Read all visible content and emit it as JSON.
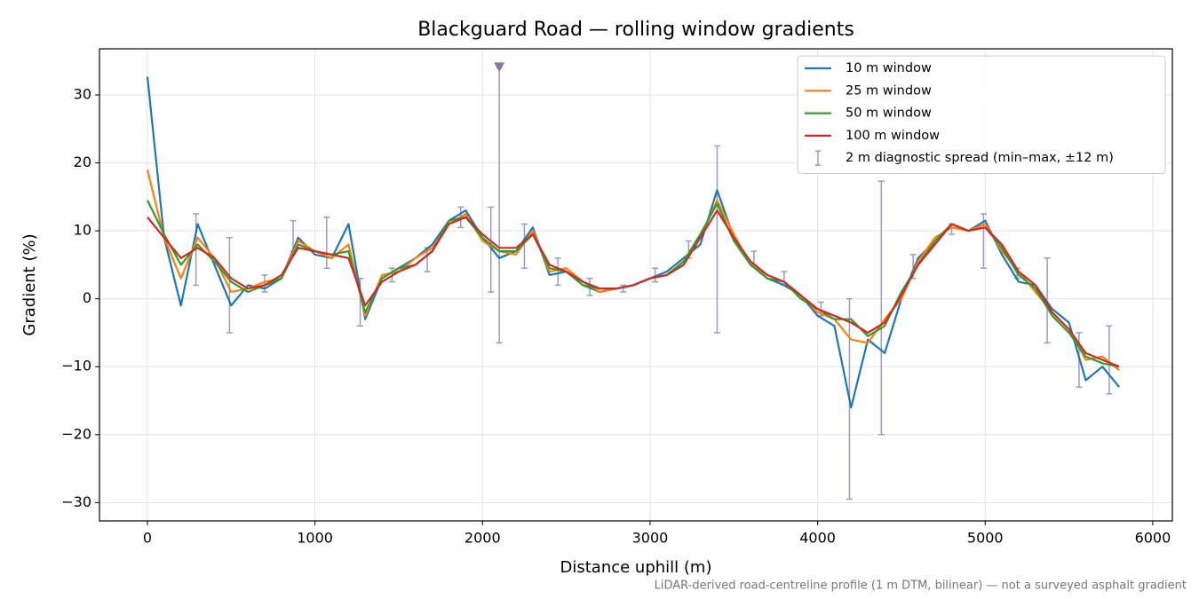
{
  "chart_data": {
    "type": "line",
    "title": "Blackguard Road — rolling window gradients",
    "xlabel": "Distance uphill (m)",
    "ylabel": "Gradient (%)",
    "footnote": "LiDAR-derived road-centreline profile (1 m DTM, bilinear) — not a surveyed asphalt gradient",
    "xlim": [
      -286,
      6117
    ],
    "ylim": [
      -32.7,
      36.8
    ],
    "xticks": [
      0,
      1000,
      2000,
      3000,
      4000,
      5000,
      6000
    ],
    "yticks": [
      {
        "value": -30,
        "label": "−30"
      },
      {
        "value": -20,
        "label": "−20"
      },
      {
        "value": -10,
        "label": "−10"
      },
      0,
      10,
      20,
      30
    ],
    "grid": true,
    "legend": "upper right",
    "x": [
      0,
      100,
      200,
      300,
      400,
      500,
      600,
      700,
      800,
      900,
      1000,
      1100,
      1200,
      1300,
      1400,
      1500,
      1600,
      1700,
      1800,
      1900,
      2000,
      2100,
      2200,
      2300,
      2400,
      2500,
      2600,
      2700,
      2800,
      2900,
      3000,
      3100,
      3200,
      3300,
      3400,
      3500,
      3600,
      3700,
      3800,
      3900,
      4000,
      4100,
      4200,
      4300,
      4400,
      4500,
      4600,
      4700,
      4800,
      4900,
      5000,
      5100,
      5200,
      5300,
      5400,
      5500,
      5600,
      5700,
      5800
    ],
    "series": [
      {
        "name": "10 m window",
        "color": "#1f77b4",
        "values": [
          32.7,
          9,
          -1,
          11,
          5,
          -1,
          2,
          1.5,
          3,
          9,
          6.5,
          6,
          11,
          -3,
          3,
          4.5,
          6,
          8,
          11.5,
          13,
          9,
          6,
          7,
          10.5,
          3.5,
          4,
          2,
          1,
          1.5,
          2,
          3,
          4,
          6,
          8,
          16,
          9,
          5,
          3,
          2,
          0.5,
          -2.5,
          -4,
          -16,
          -6,
          -8,
          0,
          6,
          8.5,
          11,
          10,
          11.5,
          6.5,
          2.5,
          2,
          -1.5,
          -3.5,
          -12,
          -10,
          -13
        ]
      },
      {
        "name": "25 m window",
        "color": "#ff7f0e",
        "values": [
          19,
          9,
          3,
          9,
          6,
          1,
          1.5,
          2.5,
          3,
          8.5,
          7,
          6,
          8,
          -2.5,
          3.5,
          4,
          6,
          7.5,
          11,
          12.5,
          8.5,
          7,
          6.5,
          10,
          4,
          4.5,
          2.5,
          1,
          1.5,
          2,
          3,
          3.5,
          5,
          9,
          14.5,
          9.5,
          5,
          3.5,
          2.5,
          0.5,
          -2,
          -3,
          -6,
          -6.5,
          -3,
          0,
          5.5,
          9,
          10.5,
          10,
          11,
          7,
          4,
          1,
          -2,
          -4.5,
          -9,
          -8.5,
          -10.5
        ]
      },
      {
        "name": "50 m window",
        "color": "#2ca02c",
        "values": [
          14.5,
          9.5,
          5,
          8,
          5.5,
          2.5,
          1,
          2,
          3,
          8,
          7,
          6.5,
          7,
          -2,
          3,
          4.5,
          5,
          7,
          11.5,
          12,
          9,
          7,
          7,
          9.5,
          4.5,
          4,
          2,
          1.5,
          1.5,
          2,
          3,
          3.5,
          5.5,
          9.5,
          14,
          8.5,
          5,
          3,
          2.5,
          0,
          -1.5,
          -3,
          -3,
          -5.5,
          -4,
          1,
          5,
          8.5,
          11,
          10,
          10.5,
          7.5,
          3.5,
          1.5,
          -2.5,
          -5,
          -8.5,
          -9.5,
          -10
        ]
      },
      {
        "name": "100 m window",
        "color": "#d62728",
        "values": [
          12,
          9,
          6,
          7.5,
          6,
          3,
          1.5,
          2,
          3.5,
          7.5,
          7,
          6.5,
          6,
          -1,
          2.5,
          4,
          5,
          7,
          11,
          12,
          9.5,
          7.5,
          7.5,
          9.5,
          5,
          4,
          2.5,
          1.5,
          1.5,
          2,
          3,
          3.5,
          5,
          9,
          13,
          9,
          5.5,
          3.5,
          2.5,
          0.5,
          -1.5,
          -2.5,
          -3.5,
          -5,
          -3.5,
          0.5,
          5,
          8,
          11,
          10,
          10.5,
          8,
          4,
          2,
          -2,
          -4.5,
          -8,
          -9,
          -10
        ]
      }
    ],
    "errorbars": {
      "name": "2 m diagnostic spread (min–max, ±12 m)",
      "color": "#9d9ac4",
      "x": [
        290,
        490,
        700,
        870,
        1070,
        1270,
        1460,
        1670,
        1870,
        2050,
        2100,
        2250,
        2450,
        2640,
        2840,
        3030,
        3230,
        3400,
        3620,
        3800,
        4020,
        4190,
        4380,
        4570,
        4800,
        4990,
        5190,
        5370,
        5560,
        5740
      ],
      "lo": [
        2,
        -5,
        1,
        7,
        4.5,
        -4,
        2.5,
        4,
        10.5,
        1,
        -6.5,
        4.5,
        2,
        0.5,
        1,
        2.5,
        6,
        -5,
        5,
        2,
        -2.5,
        -29.5,
        -20,
        3,
        9.5,
        4.5,
        3,
        -6.5,
        -13,
        -14
      ],
      "hi": [
        12.5,
        9,
        3.5,
        11.5,
        12,
        3,
        4.5,
        7.5,
        13.5,
        13.5,
        34,
        11,
        6,
        3,
        2,
        4.5,
        8.5,
        22.5,
        7,
        4,
        -0.5,
        0,
        17.3,
        6.5,
        11,
        12.5,
        4.5,
        6,
        -5,
        -4
      ]
    },
    "outlier_marker": {
      "x": 2100,
      "y": 34,
      "color": "#8c74a8"
    }
  }
}
